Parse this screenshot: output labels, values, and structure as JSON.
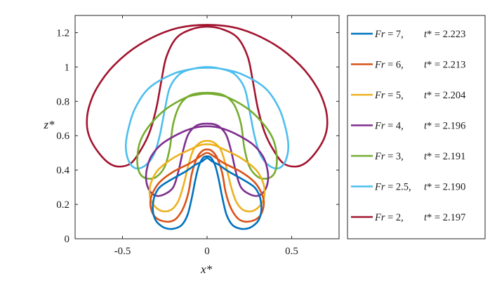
{
  "chart_data": {
    "type": "line",
    "xlabel": "x*",
    "ylabel": "z*",
    "xlim": [
      -0.78,
      0.78
    ],
    "ylim": [
      0,
      1.3
    ],
    "x_ticks": [
      {
        "value": -0.5,
        "label": "-0.5"
      },
      {
        "value": 0,
        "label": "0"
      },
      {
        "value": 0.5,
        "label": "0.5"
      }
    ],
    "y_ticks": [
      {
        "value": 0,
        "label": "0"
      },
      {
        "value": 0.2,
        "label": "0.2"
      },
      {
        "value": 0.4,
        "label": "0.4"
      },
      {
        "value": 0.6,
        "label": "0.6"
      },
      {
        "value": 0.8,
        "label": "0.8"
      },
      {
        "value": 1.0,
        "label": "1"
      },
      {
        "value": 1.2,
        "label": "1.2"
      }
    ],
    "legend_placement": "outside-right",
    "series": [
      {
        "name": "Fr = 7,   t* = 2.223",
        "fr": "7",
        "t": "2.223",
        "color": "#0072BD",
        "points": [
          [
            0,
            0.48
          ],
          [
            0.025,
            0.47
          ],
          [
            0.05,
            0.42
          ],
          [
            0.07,
            0.34
          ],
          [
            0.09,
            0.24
          ],
          [
            0.115,
            0.14
          ],
          [
            0.15,
            0.08
          ],
          [
            0.2,
            0.058
          ],
          [
            0.25,
            0.063
          ],
          [
            0.29,
            0.09
          ],
          [
            0.31,
            0.12
          ],
          [
            0.32,
            0.16
          ],
          [
            0.32,
            0.2
          ],
          [
            0.31,
            0.25
          ],
          [
            0.28,
            0.3
          ],
          [
            0.22,
            0.34
          ],
          [
            0.13,
            0.39
          ],
          [
            0.07,
            0.43
          ],
          [
            0.03,
            0.45
          ],
          [
            0,
            0.47
          ]
        ]
      },
      {
        "name": "Fr = 6,   t* = 2.213",
        "fr": "6",
        "t": "2.213",
        "color": "#D95319",
        "points": [
          [
            0,
            0.52
          ],
          [
            0.03,
            0.51
          ],
          [
            0.06,
            0.47
          ],
          [
            0.09,
            0.38
          ],
          [
            0.11,
            0.27
          ],
          [
            0.14,
            0.18
          ],
          [
            0.18,
            0.12
          ],
          [
            0.22,
            0.1
          ],
          [
            0.27,
            0.105
          ],
          [
            0.31,
            0.13
          ],
          [
            0.33,
            0.17
          ],
          [
            0.335,
            0.22
          ],
          [
            0.32,
            0.27
          ],
          [
            0.28,
            0.33
          ],
          [
            0.2,
            0.39
          ],
          [
            0.1,
            0.44
          ],
          [
            0.04,
            0.48
          ],
          [
            0,
            0.5
          ]
        ]
      },
      {
        "name": "Fr = 5,   t* = 2.204",
        "fr": "5",
        "t": "2.204",
        "color": "#EDB120",
        "points": [
          [
            0,
            0.57
          ],
          [
            0.04,
            0.56
          ],
          [
            0.08,
            0.52
          ],
          [
            0.11,
            0.43
          ],
          [
            0.14,
            0.31
          ],
          [
            0.17,
            0.22
          ],
          [
            0.21,
            0.17
          ],
          [
            0.26,
            0.16
          ],
          [
            0.3,
            0.18
          ],
          [
            0.33,
            0.22
          ],
          [
            0.34,
            0.27
          ],
          [
            0.33,
            0.33
          ],
          [
            0.29,
            0.4
          ],
          [
            0.2,
            0.47
          ],
          [
            0.1,
            0.52
          ],
          [
            0.04,
            0.545
          ],
          [
            0,
            0.55
          ]
        ]
      },
      {
        "name": "Fr = 4,   t* = 2.196",
        "fr": "4",
        "t": "2.196",
        "color": "#7E2F8E",
        "points": [
          [
            0,
            0.67
          ],
          [
            0.06,
            0.66
          ],
          [
            0.11,
            0.61
          ],
          [
            0.14,
            0.52
          ],
          [
            0.17,
            0.39
          ],
          [
            0.2,
            0.3
          ],
          [
            0.25,
            0.26
          ],
          [
            0.3,
            0.25
          ],
          [
            0.34,
            0.28
          ],
          [
            0.36,
            0.34
          ],
          [
            0.355,
            0.41
          ],
          [
            0.33,
            0.48
          ],
          [
            0.27,
            0.55
          ],
          [
            0.17,
            0.61
          ],
          [
            0.08,
            0.645
          ],
          [
            0,
            0.655
          ]
        ]
      },
      {
        "name": "Fr = 3,   t* = 2.191",
        "fr": "3",
        "t": "2.191",
        "color": "#77AC30",
        "points": [
          [
            0,
            0.85
          ],
          [
            0.1,
            0.835
          ],
          [
            0.16,
            0.78
          ],
          [
            0.2,
            0.67
          ],
          [
            0.22,
            0.53
          ],
          [
            0.25,
            0.42
          ],
          [
            0.3,
            0.36
          ],
          [
            0.35,
            0.35
          ],
          [
            0.39,
            0.37
          ],
          [
            0.41,
            0.42
          ],
          [
            0.41,
            0.5
          ],
          [
            0.39,
            0.58
          ],
          [
            0.34,
            0.66
          ],
          [
            0.25,
            0.75
          ],
          [
            0.13,
            0.82
          ],
          [
            0.05,
            0.84
          ],
          [
            0,
            0.845
          ]
        ]
      },
      {
        "name": "Fr = 2.5,t* = 2.190",
        "fr": "2.5",
        "t": "2.190",
        "color": "#4DBEEE",
        "points": [
          [
            0,
            1.0
          ],
          [
            0.08,
            0.99
          ],
          [
            0.16,
            0.96
          ],
          [
            0.22,
            0.88
          ],
          [
            0.25,
            0.75
          ],
          [
            0.28,
            0.6
          ],
          [
            0.31,
            0.5
          ],
          [
            0.35,
            0.44
          ],
          [
            0.4,
            0.41
          ],
          [
            0.44,
            0.42
          ],
          [
            0.47,
            0.47
          ],
          [
            0.48,
            0.55
          ],
          [
            0.46,
            0.66
          ],
          [
            0.42,
            0.77
          ],
          [
            0.34,
            0.88
          ],
          [
            0.2,
            0.96
          ],
          [
            0.08,
            0.99
          ],
          [
            0,
            0.995
          ]
        ]
      },
      {
        "name": "Fr = 2,   t* = 2.197",
        "fr": "2",
        "t": "2.197",
        "color": "#A2142F",
        "points": [
          [
            0,
            1.235
          ],
          [
            0.09,
            1.22
          ],
          [
            0.18,
            1.17
          ],
          [
            0.24,
            1.06
          ],
          [
            0.27,
            0.92
          ],
          [
            0.3,
            0.76
          ],
          [
            0.34,
            0.62
          ],
          [
            0.39,
            0.52
          ],
          [
            0.45,
            0.44
          ],
          [
            0.52,
            0.42
          ],
          [
            0.58,
            0.44
          ],
          [
            0.64,
            0.5
          ],
          [
            0.69,
            0.58
          ],
          [
            0.71,
            0.66
          ],
          [
            0.7,
            0.76
          ],
          [
            0.65,
            0.88
          ],
          [
            0.55,
            1.01
          ],
          [
            0.4,
            1.13
          ],
          [
            0.2,
            1.22
          ],
          [
            0,
            1.245
          ]
        ]
      }
    ]
  }
}
